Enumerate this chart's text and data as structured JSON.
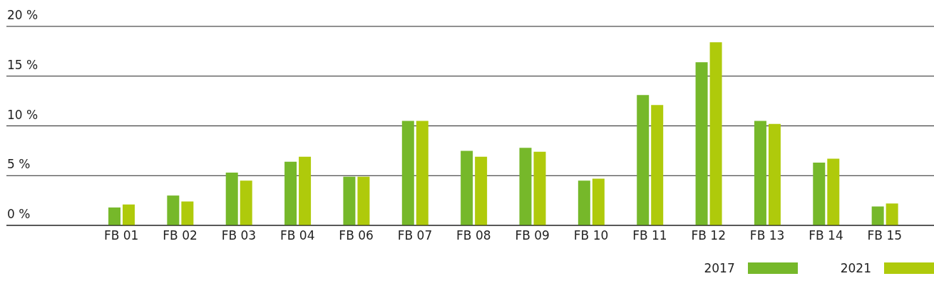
{
  "chart_data": {
    "type": "bar",
    "categories": [
      "FB 01",
      "FB 02",
      "FB 03",
      "FB 04",
      "FB 06",
      "FB 07",
      "FB 08",
      "FB 09",
      "FB 10",
      "FB 11",
      "FB 12",
      "FB 13",
      "FB 14",
      "FB 15"
    ],
    "series": [
      {
        "name": "2017",
        "color": "#76b82a",
        "values": [
          1.8,
          3.0,
          5.3,
          6.4,
          4.9,
          10.5,
          7.5,
          7.8,
          4.5,
          13.1,
          16.4,
          10.5,
          6.3,
          1.9
        ]
      },
      {
        "name": "2021",
        "color": "#afca0b",
        "values": [
          2.1,
          2.4,
          4.5,
          6.9,
          4.9,
          10.5,
          6.9,
          7.4,
          4.7,
          12.1,
          18.4,
          10.2,
          6.7,
          2.2
        ]
      }
    ],
    "ylim": [
      0,
      20
    ],
    "yticks": [
      {
        "value": 0,
        "label": "0 %"
      },
      {
        "value": 5,
        "label": "5 %"
      },
      {
        "value": 10,
        "label": "10 %"
      },
      {
        "value": 15,
        "label": "15 %"
      },
      {
        "value": 20,
        "label": "20 %"
      }
    ],
    "grid": "y",
    "legend": "bottom right"
  }
}
